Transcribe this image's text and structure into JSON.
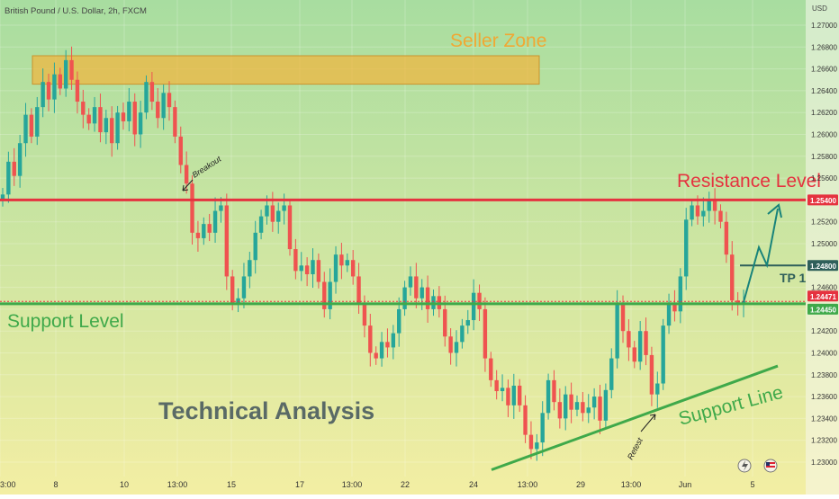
{
  "header": {
    "symbol": "British Pound / U.S. Dollar, 2h, FXCM"
  },
  "currency": "USD",
  "colors": {
    "bg_top": "#a8dda0",
    "bg_bottom": "#f3eea3",
    "up": "#26a69a",
    "down": "#ef5350",
    "resistance": "#e5323f",
    "support": "#3fa94a",
    "tp": "#2f5f5a",
    "arrow": "#18837a",
    "zone_fill": "#f2b43a",
    "zone_text": "#f0a833",
    "title_text": "#5a6a66"
  },
  "annotations": {
    "seller_zone": "Seller Zone",
    "resistance_level": "Resistance Level",
    "support_level": "Support Level",
    "support_line": "Support Line",
    "technical_analysis": "Technical Analysis",
    "tp1": "TP 1",
    "breakout": "Breakout",
    "retest": "Retest"
  },
  "chart_data": {
    "type": "candlestick",
    "title": "British Pound / U.S. Dollar, 2h, FXCM",
    "ylabel": "USD",
    "ylim": [
      1.229,
      1.272
    ],
    "y_ticks": [
      "1.27000",
      "1.26800",
      "1.26600",
      "1.26400",
      "1.26200",
      "1.26000",
      "1.25800",
      "1.25600",
      "1.25400",
      "1.25200",
      "1.25000",
      "1.24800",
      "1.24600",
      "1.24471",
      "1.24450",
      "1.24200",
      "1.24000",
      "1.23800",
      "1.23600",
      "1.23400",
      "1.23200",
      "1.23000"
    ],
    "x_ticks": [
      "3:00",
      "8",
      "10",
      "13:00",
      "15",
      "17",
      "13:00",
      "22",
      "24",
      "13:00",
      "29",
      "13:00",
      "Jun",
      "5"
    ],
    "levels": {
      "resistance": 1.254,
      "tp1": 1.248,
      "support": 1.2445,
      "last_price": 1.24471
    },
    "price_labels": [
      "1.25400",
      "1.24800",
      "1.24471",
      "1.24450"
    ],
    "seller_zone": [
      1.2646,
      1.2672
    ],
    "support_line": {
      "start": 1.2293,
      "end": 1.2388
    },
    "close_path": [
      1.2545,
      1.2575,
      1.2562,
      1.2592,
      1.2618,
      1.2598,
      1.2625,
      1.2648,
      1.2632,
      1.2655,
      1.2642,
      1.2668,
      1.265,
      1.263,
      1.2618,
      1.261,
      1.2625,
      1.2602,
      1.2615,
      1.2592,
      1.262,
      1.2612,
      1.263,
      1.26,
      1.262,
      1.2648,
      1.263,
      1.2615,
      1.2638,
      1.2625,
      1.2598,
      1.2572,
      1.2555,
      1.251,
      1.2505,
      1.2518,
      1.251,
      1.253,
      1.2535,
      1.247,
      1.2445,
      1.245,
      1.247,
      1.2485,
      1.251,
      1.2525,
      1.2535,
      1.252,
      1.253,
      1.2535,
      1.2495,
      1.2475,
      1.248,
      1.2472,
      1.2485,
      1.2465,
      1.244,
      1.2465,
      1.249,
      1.248,
      1.2485,
      1.247,
      1.2445,
      1.2425,
      1.24,
      1.2395,
      1.241,
      1.2405,
      1.2418,
      1.244,
      1.246,
      1.247,
      1.245,
      1.246,
      1.244,
      1.2452,
      1.244,
      1.2415,
      1.24,
      1.241,
      1.2425,
      1.243,
      1.2455,
      1.244,
      1.2395,
      1.2375,
      1.2365,
      1.2368,
      1.2352,
      1.237,
      1.2352,
      1.2325,
      1.2312,
      1.2318,
      1.2345,
      1.2375,
      1.2355,
      1.234,
      1.2362,
      1.2348,
      1.2355,
      1.2345,
      1.235,
      1.236,
      1.2338,
      1.2366,
      1.2395,
      1.2445,
      1.242,
      1.2405,
      1.2392,
      1.242,
      1.2398,
      1.2362,
      1.2372,
      1.2425,
      1.2445,
      1.2438,
      1.247,
      1.2522,
      1.2535,
      1.2525,
      1.253,
      1.254,
      1.253,
      1.252,
      1.249,
      1.2448,
      1.2445,
      1.24471
    ]
  }
}
